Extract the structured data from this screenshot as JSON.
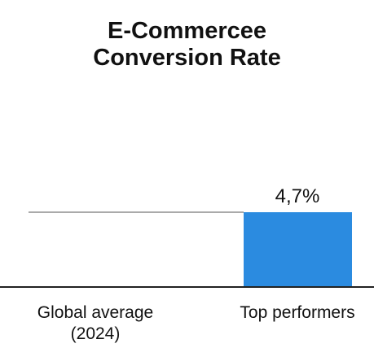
{
  "chart_data": {
    "type": "bar",
    "title_lines": [
      "E-Commercee",
      "Conversion Rate"
    ],
    "categories": [
      {
        "lines": [
          "Global average",
          "(2024)"
        ]
      },
      {
        "lines": [
          "Top performers"
        ]
      }
    ],
    "series": [
      {
        "values": [
          null,
          4.7
        ],
        "data_labels": [
          "",
          "4,7%"
        ]
      }
    ],
    "reference_line": {
      "category_index": 0,
      "value": 4.7
    },
    "ylim": [
      0,
      4.7
    ],
    "grid": false,
    "legend": "none",
    "colors": {
      "bar": "#2b8be0",
      "reference_line": "#aaaaaa",
      "axis": "#222222"
    }
  }
}
